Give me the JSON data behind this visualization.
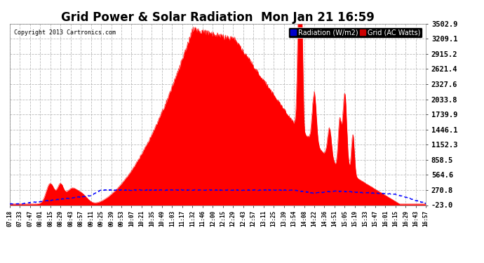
{
  "title": "Grid Power & Solar Radiation  Mon Jan 21 16:59",
  "copyright": "Copyright 2013 Cartronics.com",
  "legend_labels": [
    "Radiation (W/m2)",
    "Grid (AC Watts)"
  ],
  "legend_colors_bg": [
    "#0000cc",
    "#cc0000"
  ],
  "legend_text_color": "#ffffff",
  "ylim": [
    -23.0,
    3502.9
  ],
  "yticks": [
    -23.0,
    270.8,
    564.6,
    858.5,
    1152.3,
    1446.1,
    1739.9,
    2033.8,
    2327.6,
    2621.4,
    2915.2,
    3209.1,
    3502.9
  ],
  "ytick_labels": [
    "-23.0",
    "270.8",
    "564.6",
    "858.5",
    "1152.3",
    "1446.1",
    "1739.9",
    "2033.8",
    "2327.6",
    "2621.4",
    "2915.2",
    "3209.1",
    "3502.9"
  ],
  "xtick_labels": [
    "07:18",
    "07:33",
    "07:47",
    "08:01",
    "08:15",
    "08:29",
    "08:43",
    "08:57",
    "09:11",
    "09:25",
    "09:39",
    "09:53",
    "10:07",
    "10:21",
    "10:35",
    "10:49",
    "11:03",
    "11:17",
    "11:32",
    "11:46",
    "12:00",
    "12:15",
    "12:29",
    "12:43",
    "12:57",
    "13:11",
    "13:25",
    "13:39",
    "13:54",
    "14:08",
    "14:22",
    "14:36",
    "14:51",
    "15:05",
    "15:19",
    "15:33",
    "15:47",
    "16:01",
    "16:15",
    "16:29",
    "16:43",
    "16:57"
  ],
  "plot_bg": "#ffffff",
  "outer_bg": "#ffffff",
  "grid_color": "#aaaaaa",
  "title_color": "#000000",
  "tick_label_color": "#000000",
  "radiation_color": "#0000ff",
  "grid_ac_color": "#ff0000",
  "radiation_line_style": "--"
}
